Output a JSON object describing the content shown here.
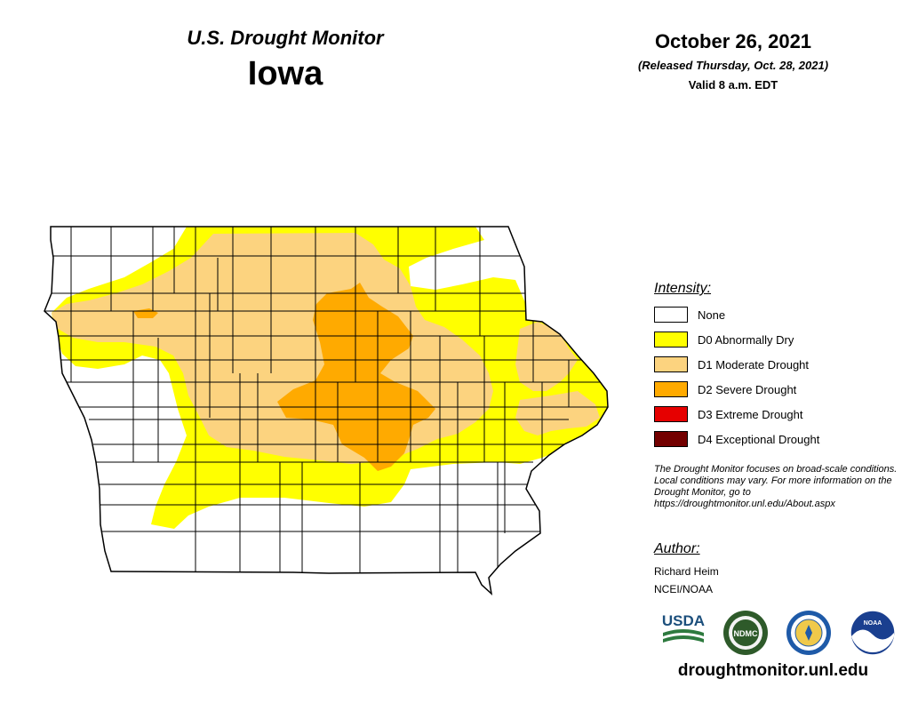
{
  "header": {
    "product": "U.S. Drought Monitor",
    "state": "Iowa",
    "date": "October 26, 2021",
    "released": "(Released Thursday, Oct. 28, 2021)",
    "valid": "Valid 8 a.m. EDT"
  },
  "legend": {
    "title": "Intensity:",
    "items": [
      {
        "label": "None",
        "color": "#ffffff"
      },
      {
        "label": "D0 Abnormally Dry",
        "color": "#ffff00"
      },
      {
        "label": "D1 Moderate Drought",
        "color": "#fcd37f"
      },
      {
        "label": "D2 Severe Drought",
        "color": "#ffaa00"
      },
      {
        "label": "D3 Extreme Drought",
        "color": "#e60000"
      },
      {
        "label": "D4 Exceptional Drought",
        "color": "#730000"
      }
    ]
  },
  "note": "The Drought Monitor focuses on broad-scale conditions. Local conditions may vary. For more information on the Drought Monitor, go to https://droughtmonitor.unl.edu/About.aspx",
  "author": {
    "title": "Author:",
    "name": "Richard Heim",
    "org": "NCEI/NOAA"
  },
  "logos": {
    "usda": "USDA",
    "ndmc": "NDMC",
    "noaa": "NOAA"
  },
  "url": "droughtmonitor.unl.edu"
}
